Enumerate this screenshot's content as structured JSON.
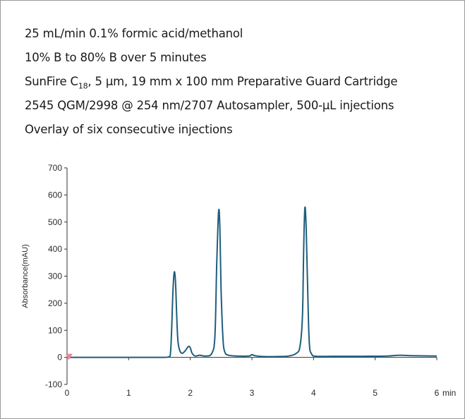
{
  "conditions": [
    "25 mL/min 0.1% formic acid/methanol",
    "10% B to 80% B over 5 minutes",
    "SunFire C18, 5 μm, 19 mm x 100 mm Preparative Guard Cartridge",
    "2545 QGM/2998 @ 254 nm/2707 Autosampler, 500-μL injections",
    "Overlay of six consecutive injections"
  ],
  "colors": {
    "trace": "#1f5e7e",
    "marker": "#e8889a",
    "axis": "#333333"
  },
  "chart_data": {
    "type": "line",
    "title": "",
    "xlabel": "",
    "ylabel": "Absorbance(mAU)",
    "x_unit": "min",
    "xlim": [
      0,
      6
    ],
    "ylim": [
      -100,
      700
    ],
    "xticks": [
      "0",
      "1",
      "2",
      "3",
      "4",
      "5",
      "6"
    ],
    "yticks": [
      "700",
      "600",
      "500",
      "400",
      "300",
      "200",
      "100",
      "0",
      "-100"
    ],
    "grid": false,
    "legend": "none",
    "marker_at": [
      0,
      0
    ],
    "x": [
      0,
      0.5,
      1.0,
      1.5,
      1.65,
      1.68,
      1.7,
      1.72,
      1.74,
      1.76,
      1.78,
      1.8,
      1.83,
      1.87,
      1.92,
      1.97,
      2.0,
      2.03,
      2.08,
      2.15,
      2.25,
      2.35,
      2.4,
      2.43,
      2.46,
      2.48,
      2.5,
      2.53,
      2.56,
      2.62,
      2.75,
      2.95,
      3.0,
      3.05,
      3.2,
      3.4,
      3.6,
      3.72,
      3.78,
      3.82,
      3.84,
      3.86,
      3.88,
      3.9,
      3.93,
      3.97,
      4.05,
      4.3,
      4.8,
      5.2,
      5.4,
      5.6,
      6.0
    ],
    "y": [
      0,
      0,
      0,
      0,
      2,
      20,
      120,
      250,
      315,
      280,
      150,
      60,
      25,
      15,
      25,
      40,
      35,
      15,
      5,
      8,
      5,
      15,
      80,
      350,
      540,
      480,
      250,
      70,
      20,
      8,
      5,
      5,
      10,
      6,
      3,
      3,
      5,
      15,
      40,
      150,
      400,
      553,
      480,
      300,
      60,
      12,
      4,
      4,
      4,
      5,
      8,
      6,
      5
    ]
  }
}
